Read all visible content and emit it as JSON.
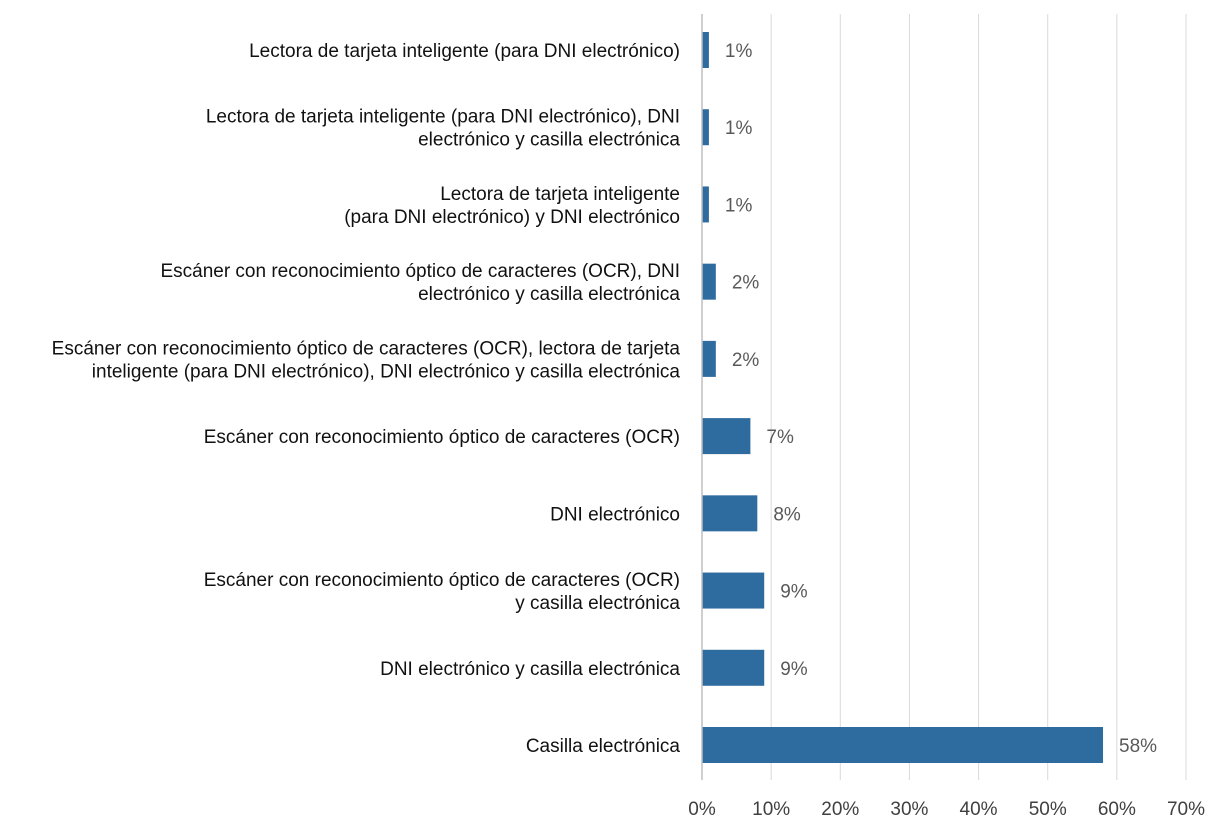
{
  "chart_data": {
    "type": "bar",
    "orientation": "horizontal",
    "title": "",
    "xlabel": "",
    "ylabel": "",
    "xlim": [
      0,
      70
    ],
    "grid": "vertical",
    "legend": "none",
    "bar_color": "#2e6b9e",
    "x_ticks": [
      "0%",
      "10%",
      "20%",
      "30%",
      "40%",
      "50%",
      "60%",
      "70%"
    ],
    "categories": [
      [
        "Lectora de tarjeta inteligente (para DNI electrónico)"
      ],
      [
        "Lectora de tarjeta inteligente (para DNI electrónico), DNI",
        "electrónico y casilla electrónica"
      ],
      [
        "Lectora de tarjeta inteligente",
        "(para DNI electrónico) y DNI electrónico"
      ],
      [
        "Escáner con reconocimiento óptico de caracteres (OCR), DNI",
        "electrónico y casilla electrónica"
      ],
      [
        "Escáner con reconocimiento óptico de caracteres (OCR), lectora de tarjeta",
        "inteligente (para DNI electrónico), DNI electrónico y casilla electrónica"
      ],
      [
        "Escáner con reconocimiento óptico de caracteres (OCR)"
      ],
      [
        "DNI electrónico"
      ],
      [
        "Escáner con reconocimiento óptico de caracteres (OCR)",
        "y casilla electrónica"
      ],
      [
        "DNI electrónico y casilla electrónica"
      ],
      [
        "Casilla electrónica"
      ]
    ],
    "values": [
      1,
      1,
      1,
      2,
      2,
      7,
      8,
      9,
      9,
      58
    ],
    "data_labels": [
      "1%",
      "1%",
      "1%",
      "2%",
      "2%",
      "7%",
      "8%",
      "9%",
      "9%",
      "58%"
    ]
  }
}
